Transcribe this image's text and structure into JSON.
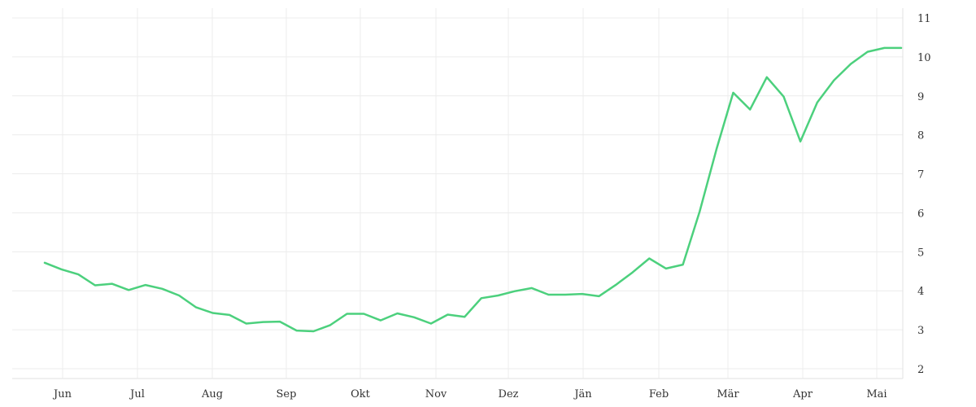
{
  "chart_data": {
    "type": "line",
    "title": "",
    "xlabel": "",
    "ylabel": "",
    "x_ticks": [
      "Jun",
      "Jul",
      "Aug",
      "Sep",
      "Okt",
      "Nov",
      "Dez",
      "Jän",
      "Feb",
      "Mär",
      "Apr",
      "Mai"
    ],
    "y_ticks": [
      2,
      3,
      4,
      5,
      6,
      7,
      8,
      9,
      10,
      11
    ],
    "ylim": [
      1.75,
      11.25
    ],
    "y_axis_side": "right",
    "grid": true,
    "legend": "none",
    "line_color": "#4cd07d",
    "series": [
      {
        "values": [
          4.72,
          4.55,
          4.42,
          4.14,
          4.18,
          4.02,
          4.15,
          4.05,
          3.88,
          3.58,
          3.43,
          3.38,
          3.16,
          3.2,
          3.21,
          2.98,
          2.96,
          3.12,
          3.41,
          3.41,
          3.24,
          3.42,
          3.32,
          3.16,
          3.39,
          3.33,
          3.81,
          3.88,
          3.99,
          4.07,
          3.9,
          3.9,
          3.92,
          3.86,
          4.15,
          4.47,
          4.83,
          4.57,
          4.67,
          6.03,
          7.63,
          9.08,
          8.65,
          9.48,
          8.98,
          7.83,
          8.83,
          9.4,
          9.82,
          10.13,
          10.23,
          10.23
        ]
      }
    ]
  }
}
